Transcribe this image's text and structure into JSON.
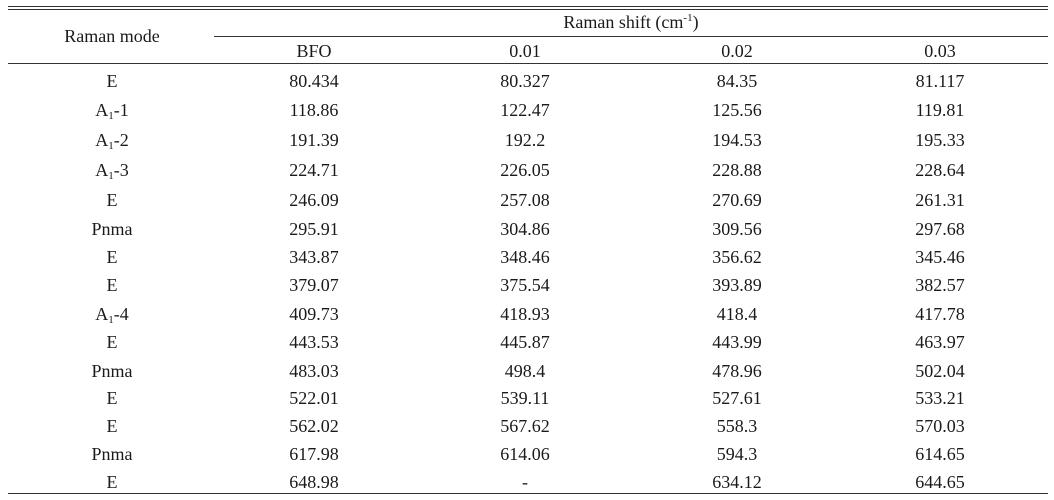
{
  "table": {
    "header": {
      "row_header": "Raman mode",
      "group": {
        "main": "Raman shift (cm",
        "sup": "-1",
        "close": ")"
      },
      "columns": [
        "BFO",
        "0.01",
        "0.02",
        "0.03"
      ]
    },
    "rows": [
      {
        "mode": {
          "main": "E",
          "sub": "",
          "rest": ""
        },
        "values": [
          "80.434",
          "80.327",
          "84.35",
          "81.117"
        ]
      },
      {
        "mode": {
          "main": "A",
          "sub": "1",
          "rest": "-1"
        },
        "values": [
          "118.86",
          "122.47",
          "125.56",
          "119.81"
        ]
      },
      {
        "mode": {
          "main": "A",
          "sub": "1",
          "rest": "-2"
        },
        "values": [
          "191.39",
          "192.2",
          "194.53",
          "195.33"
        ]
      },
      {
        "mode": {
          "main": "A",
          "sub": "1",
          "rest": "-3"
        },
        "values": [
          "224.71",
          "226.05",
          "228.88",
          "228.64"
        ]
      },
      {
        "mode": {
          "main": "E",
          "sub": "",
          "rest": ""
        },
        "values": [
          "246.09",
          "257.08",
          "270.69",
          "261.31"
        ]
      },
      {
        "mode": {
          "main": "Pnma",
          "sub": "",
          "rest": ""
        },
        "values": [
          "295.91",
          "304.86",
          "309.56",
          "297.68"
        ]
      },
      {
        "mode": {
          "main": "E",
          "sub": "",
          "rest": ""
        },
        "values": [
          "343.87",
          "348.46",
          "356.62",
          "345.46"
        ]
      },
      {
        "mode": {
          "main": "E",
          "sub": "",
          "rest": ""
        },
        "values": [
          "379.07",
          "375.54",
          "393.89",
          "382.57"
        ]
      },
      {
        "mode": {
          "main": "A",
          "sub": "1",
          "rest": "-4"
        },
        "values": [
          "409.73",
          "418.93",
          "418.4",
          "417.78"
        ]
      },
      {
        "mode": {
          "main": "E",
          "sub": "",
          "rest": ""
        },
        "values": [
          "443.53",
          "445.87",
          "443.99",
          "463.97"
        ]
      },
      {
        "mode": {
          "main": "Pnma",
          "sub": "",
          "rest": ""
        },
        "values": [
          "483.03",
          "498.4",
          "478.96",
          "502.04"
        ]
      },
      {
        "mode": {
          "main": "E",
          "sub": "",
          "rest": ""
        },
        "values": [
          "522.01",
          "539.11",
          "527.61",
          "533.21"
        ]
      },
      {
        "mode": {
          "main": "E",
          "sub": "",
          "rest": ""
        },
        "values": [
          "562.02",
          "567.62",
          "558.3",
          "570.03"
        ]
      },
      {
        "mode": {
          "main": "Pnma",
          "sub": "",
          "rest": ""
        },
        "values": [
          "617.98",
          "614.06",
          "594.3",
          "614.65"
        ]
      },
      {
        "mode": {
          "main": "E",
          "sub": "",
          "rest": ""
        },
        "values": [
          "648.98",
          "-",
          "634.12",
          "644.65"
        ]
      }
    ]
  }
}
